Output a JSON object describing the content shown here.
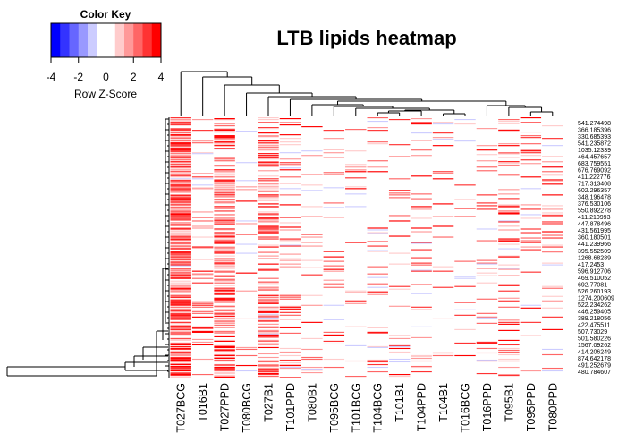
{
  "title": "LTB lipids heatmap",
  "color_key": {
    "title": "Color Key",
    "xlabel": "Row Z-Score",
    "ticks": [
      "-4",
      "-2",
      "0",
      "2",
      "4"
    ],
    "colors": [
      "#0000ff",
      "#3333ff",
      "#6666ff",
      "#9999ff",
      "#ccccff",
      "#ffffff",
      "#ffffff",
      "#ffcccc",
      "#ff9999",
      "#ff6666",
      "#ff3333",
      "#ff0000"
    ]
  },
  "chart_data": {
    "type": "heatmap",
    "title": "LTB lipids heatmap",
    "columns": [
      "T027BCG",
      "T016B1",
      "T027PPD",
      "T080BCG",
      "T027B1",
      "T101PPD",
      "T080B1",
      "T095BCG",
      "T101BCG",
      "T104BCG",
      "T101B1",
      "T104PPD",
      "T104B1",
      "T016BCG",
      "T016PPD",
      "T095B1",
      "T095PPD",
      "T080PPD"
    ],
    "row_labels": [
      "541.274498",
      "366.185396",
      "330.685393",
      "541.235872",
      "1035.12339",
      "464.457657",
      "683.759551",
      "676.769092",
      "411.222776",
      "717.313408",
      "602.296357",
      "348.196478",
      "376.530106",
      "550.892278",
      "411.210993",
      "447.878496",
      "431.561995",
      "360.180501",
      "441.239966",
      "395.552509",
      "1268.68289",
      "417.2453",
      "596.912706",
      "469.510052",
      "692.77081",
      "526.260193",
      "1274.200609",
      "522.234262",
      "446.259405",
      "389.218056",
      "422.475511",
      "507.73029",
      "501.580226",
      "1567.09262",
      "414.206249",
      "874.642178",
      "491.252679",
      "480.784607"
    ],
    "z_range": [
      -4,
      4
    ],
    "column_dendrogram": true,
    "row_dendrogram": true
  }
}
